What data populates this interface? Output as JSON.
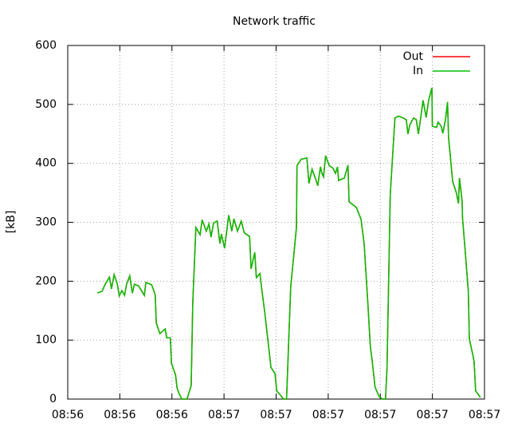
{
  "chart_data": {
    "type": "line",
    "title": "Network traffic",
    "y_label": "[kB]",
    "x": [
      5.7,
      6.6,
      7.2,
      8.0,
      8.4,
      8.9,
      9.5,
      9.9,
      10.4,
      10.9,
      11.3,
      11.9,
      12.4,
      12.8,
      13.6,
      14.7,
      15.0,
      16.1,
      16.8,
      17.0,
      17.7,
      18.7,
      19.0,
      19.7,
      19.9,
      20.7,
      21.0,
      21.4,
      21.9,
      22.9,
      23.7,
      24.0,
      24.6,
      25.4,
      25.8,
      26.6,
      27.1,
      27.5,
      28.0,
      28.7,
      29.2,
      29.5,
      30.1,
      30.9,
      31.5,
      31.9,
      32.6,
      33.3,
      33.9,
      34.9,
      35.2,
      35.9,
      36.2,
      36.9,
      37.3,
      37.8,
      39.0,
      39.8,
      40.1,
      40.8,
      41.4,
      42.0,
      42.8,
      43.9,
      44.0,
      44.8,
      45.9,
      46.3,
      46.9,
      47.6,
      48.0,
      48.5,
      48.8,
      49.1,
      49.5,
      50.2,
      50.9,
      51.4,
      51.8,
      52.0,
      53.1,
      53.8,
      54.0,
      55.4,
      56.3,
      56.9,
      57.6,
      58.1,
      58.4,
      59.0,
      59.8,
      60.4,
      61.0,
      61.3,
      61.9,
      62.8,
      63.5,
      64.4,
      65.0,
      65.3,
      65.7,
      66.4,
      66.9,
      67.3,
      67.6,
      68.2,
      68.8,
      69.3,
      69.9,
      70.0,
      70.8,
      71.1,
      71.7,
      72.0,
      72.5,
      72.9,
      73.1,
      73.9,
      74.6,
      75.0,
      75.2,
      75.7,
      75.8,
      76.3,
      76.9,
      77.1,
      77.7,
      78.0,
      78.3,
      79.2
    ],
    "series": [
      {
        "name": "Out",
        "color": "#ff0000",
        "values": [
          180,
          183,
          195,
          207,
          187,
          211,
          196,
          175,
          184,
          176,
          195,
          209,
          180,
          195,
          192,
          176,
          198,
          194,
          177,
          129,
          111,
          119,
          104,
          104,
          61,
          41,
          18,
          9,
          0,
          0,
          23,
          163,
          291,
          279,
          304,
          285,
          297,
          275,
          299,
          302,
          264,
          280,
          256,
          312,
          285,
          306,
          285,
          302,
          282,
          276,
          221,
          249,
          206,
          213,
          183,
          149,
          54,
          43,
          14,
          7,
          0,
          0,
          190,
          291,
          396,
          407,
          409,
          366,
          390,
          373,
          362,
          394,
          383,
          377,
          413,
          396,
          392,
          383,
          394,
          371,
          375,
          397,
          335,
          325,
          305,
          263,
          163,
          88,
          68,
          20,
          4,
          0,
          0,
          54,
          346,
          477,
          480,
          477,
          474,
          450,
          466,
          477,
          474,
          450,
          467,
          507,
          478,
          508,
          528,
          463,
          461,
          470,
          463,
          451,
          474,
          504,
          444,
          369,
          350,
          332,
          375,
          336,
          306,
          251,
          183,
          102,
          77,
          64,
          14,
          3
        ]
      },
      {
        "name": "In",
        "color": "#00c000",
        "values": [
          180,
          183,
          195,
          207,
          187,
          211,
          196,
          175,
          184,
          176,
          195,
          209,
          180,
          195,
          192,
          176,
          198,
          194,
          177,
          129,
          111,
          119,
          104,
          104,
          61,
          41,
          18,
          9,
          0,
          0,
          23,
          163,
          291,
          279,
          304,
          285,
          297,
          275,
          299,
          302,
          264,
          280,
          256,
          312,
          285,
          306,
          285,
          302,
          282,
          276,
          221,
          249,
          206,
          213,
          183,
          149,
          54,
          43,
          14,
          7,
          0,
          0,
          190,
          291,
          396,
          407,
          409,
          366,
          390,
          373,
          362,
          394,
          383,
          377,
          413,
          396,
          392,
          383,
          394,
          371,
          375,
          397,
          335,
          325,
          305,
          263,
          163,
          88,
          68,
          20,
          4,
          0,
          0,
          54,
          346,
          477,
          480,
          477,
          474,
          450,
          466,
          477,
          474,
          450,
          467,
          507,
          478,
          508,
          528,
          463,
          461,
          470,
          463,
          451,
          474,
          504,
          444,
          369,
          350,
          332,
          375,
          336,
          306,
          251,
          183,
          102,
          77,
          64,
          14,
          3
        ]
      }
    ],
    "xlim": [
      0,
      80
    ],
    "ylim": [
      0,
      600
    ],
    "xticks": [
      {
        "value": 0,
        "label": "08:56"
      },
      {
        "value": 10,
        "label": "08:56"
      },
      {
        "value": 20,
        "label": "08:56"
      },
      {
        "value": 30,
        "label": "08:57"
      },
      {
        "value": 40,
        "label": "08:57"
      },
      {
        "value": 50,
        "label": "08:57"
      },
      {
        "value": 60,
        "label": "08:57"
      },
      {
        "value": 70,
        "label": "08:57"
      },
      {
        "value": 80,
        "label": "08:57"
      }
    ],
    "yticks": [
      0,
      100,
      200,
      300,
      400,
      500,
      600
    ],
    "grid": true,
    "legend": "top-right"
  }
}
